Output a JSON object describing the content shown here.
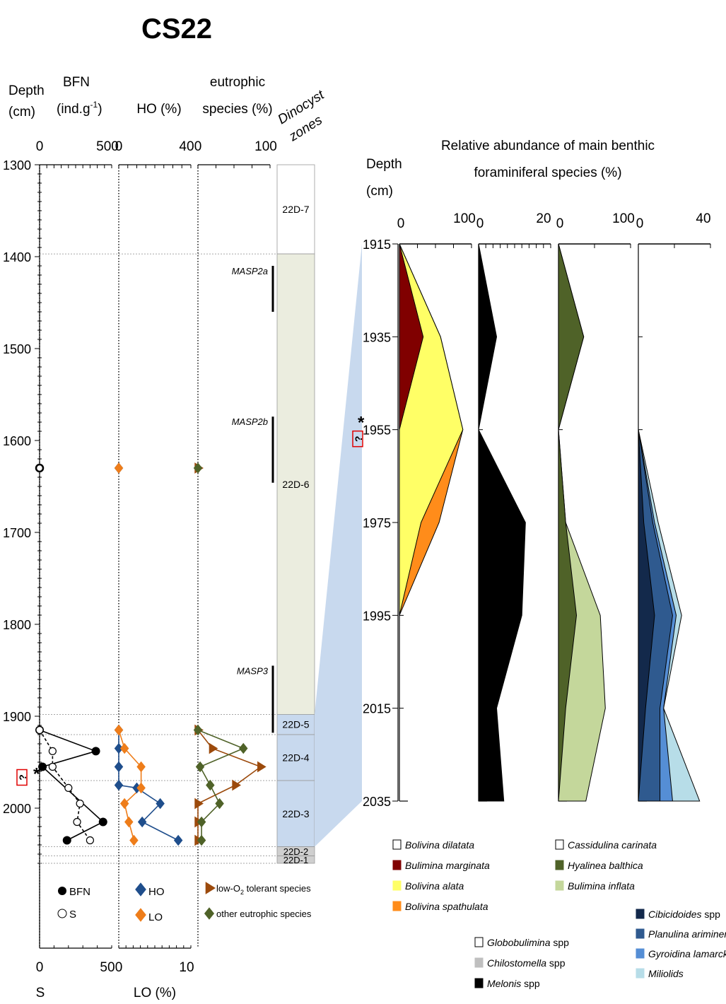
{
  "title": "CS22",
  "left": {
    "depth_label": [
      "Depth",
      "(cm)"
    ],
    "depth_ticks": [
      1300,
      1400,
      1500,
      1600,
      1700,
      1800,
      1900,
      2000
    ],
    "depth_range": [
      1300,
      2060
    ],
    "bfn": {
      "label": [
        "BFN",
        "(ind.g",
        "-1",
        ")"
      ],
      "range": [
        0,
        500
      ],
      "tick_labels": [
        "0",
        "500"
      ],
      "bottom_label": "S",
      "bottom_range": [
        0,
        50
      ],
      "bottom_tick_labels": [
        "0",
        "50"
      ]
    },
    "ho": {
      "label": "HO (%)",
      "range": [
        0,
        40
      ],
      "tick_labels": [
        "0",
        "40"
      ],
      "bottom_label": "LO (%)",
      "bottom_range": [
        0,
        10
      ],
      "bottom_tick_labels": [
        "0",
        "10"
      ]
    },
    "eutrophic": {
      "label": [
        "eutrophic",
        "species (%)"
      ],
      "range": [
        0,
        100
      ],
      "tick_labels": [
        "0",
        "100"
      ]
    },
    "zone_header": [
      "Dinocyst",
      "zones"
    ],
    "zones": [
      {
        "name": "22D-7",
        "top": 1300,
        "bottom": 1397,
        "color": "#ffffff"
      },
      {
        "name": "22D-6",
        "top": 1397,
        "bottom": 1898,
        "color": "#ebeddf"
      },
      {
        "name": "22D-5",
        "top": 1898,
        "bottom": 1920,
        "color": "#c8d9ee"
      },
      {
        "name": "22D-4",
        "top": 1920,
        "bottom": 1970,
        "color": "#c8d9ee"
      },
      {
        "name": "22D-3",
        "top": 1970,
        "bottom": 2042,
        "color": "#c8d9ee"
      },
      {
        "name": "22D-2",
        "top": 2042,
        "bottom": 2052,
        "color": "#cfcfcf"
      },
      {
        "name": "22D-1",
        "top": 2052,
        "bottom": 2060,
        "color": "#cfcfcf"
      }
    ],
    "masp": [
      {
        "name": "MASP2a",
        "top": 1410,
        "bottom": 1460
      },
      {
        "name": "MASP2b",
        "top": 1574,
        "bottom": 1646
      },
      {
        "name": "MASP3",
        "top": 1845,
        "bottom": 1918
      }
    ],
    "marker_symbol": "*",
    "marker_box": "?",
    "legends": {
      "bfn": [
        "BFN",
        "S"
      ],
      "ho": [
        "HO",
        "LO"
      ],
      "eut": [
        "low-O",
        "2",
        " tolerant species",
        "other eutrophic species"
      ]
    }
  },
  "chart_data": [
    {
      "type": "line",
      "title": "BFN (ind.g-1) and S",
      "series": [
        {
          "name": "BFN",
          "x": [
            0,
            0,
            390,
            20,
            440,
            190
          ],
          "y": [
            1630,
            1915,
            1938,
            1955,
            2015,
            2035
          ]
        },
        {
          "name": "S",
          "x": [
            0,
            0,
            9,
            9,
            20,
            28,
            26,
            35
          ],
          "y": [
            1630,
            1915,
            1938,
            1955,
            1978,
            1995,
            2015,
            2035
          ]
        }
      ],
      "xlim": [
        0,
        500
      ],
      "x2lim": [
        0,
        50
      ]
    },
    {
      "type": "line",
      "title": "HO (%) and LO (%)",
      "series": [
        {
          "name": "HO",
          "x": [
            0,
            0,
            0,
            0,
            0,
            10,
            23,
            13,
            33
          ],
          "y": [
            1630,
            1915,
            1935,
            1955,
            1975,
            1978,
            1995,
            2015,
            2035
          ]
        },
        {
          "name": "LO",
          "x": [
            0,
            0,
            0.8,
            3.1,
            3.1,
            0.8,
            1.4,
            2.1
          ],
          "y": [
            1630,
            1915,
            1935,
            1955,
            1978,
            1995,
            2015,
            2035
          ]
        }
      ],
      "xlim": [
        0,
        40
      ],
      "x2lim": [
        0,
        10
      ]
    },
    {
      "type": "line",
      "title": "eutrophic species (%)",
      "series": [
        {
          "name": "low-O2 tolerant species",
          "x": [
            0,
            0,
            20,
            87,
            52,
            0,
            0,
            0
          ],
          "y": [
            1630,
            1915,
            1935,
            1955,
            1975,
            1995,
            2015,
            2035
          ]
        },
        {
          "name": "other eutrophic species",
          "x": [
            0,
            0,
            63,
            3,
            17,
            30,
            5,
            5
          ],
          "y": [
            1630,
            1915,
            1935,
            1955,
            1975,
            1995,
            2015,
            2035
          ]
        }
      ],
      "xlim": [
        0,
        100
      ]
    },
    {
      "type": "area",
      "title": "Relative abundance of main benthic foraminiferal species (%)",
      "ylabel": "Depth (cm)",
      "depth": [
        1915,
        1935,
        1955,
        1975,
        1995,
        2015,
        2035
      ],
      "ylim": [
        1915,
        2035
      ],
      "panels": [
        {
          "xlim": [
            0,
            100
          ],
          "series": [
            {
              "name": "Bolivina dilatata",
              "color": "#ffffff",
              "values": [
                0,
                0,
                0,
                0,
                0,
                0,
                0
              ]
            },
            {
              "name": "Bulimina marginata",
              "color": "#800000",
              "values": [
                0,
                33,
                0,
                0,
                0,
                0,
                0
              ]
            },
            {
              "name": "Bolivina alata",
              "color": "#ffff66",
              "values": [
                0,
                24,
                88,
                30,
                0,
                0,
                0
              ]
            },
            {
              "name": "Bolivina spathulata",
              "color": "#ff8c1a",
              "values": [
                0,
                0,
                0,
                25,
                0,
                0,
                0
              ]
            }
          ]
        },
        {
          "xlim": [
            0,
            20
          ],
          "series": [
            {
              "name": "Globobulimina spp",
              "color": "#ffffff",
              "values": [
                0,
                0,
                0,
                0,
                0,
                0,
                0
              ]
            },
            {
              "name": "Chilostomella spp",
              "color": "#bfbfbf",
              "values": [
                0,
                0,
                0,
                0,
                0,
                0,
                0
              ]
            },
            {
              "name": "Melonis spp",
              "color": "#000000",
              "values": [
                0,
                5,
                0,
                13,
                12,
                5,
                7
              ]
            }
          ]
        },
        {
          "xlim": [
            0,
            100
          ],
          "series": [
            {
              "name": "Cassidulina carinata",
              "color": "#ffffff",
              "values": [
                0,
                0,
                0,
                0,
                0,
                0,
                0
              ]
            },
            {
              "name": "Hyalinea balthica",
              "color": "#4f6228",
              "values": [
                0,
                35,
                0,
                10,
                25,
                10,
                0
              ]
            },
            {
              "name": "Bulimina inflata",
              "color": "#c4d79b",
              "values": [
                0,
                0,
                0,
                0,
                33,
                55,
                38
              ]
            }
          ]
        },
        {
          "xlim": [
            0,
            40
          ],
          "series": [
            {
              "name": "Cibicidoides spp",
              "color": "#13294b",
              "values": [
                0,
                0,
                0,
                3,
                9,
                4,
                0
              ]
            },
            {
              "name": "Planulina ariminensis",
              "color": "#2f5a8f",
              "values": [
                0,
                0,
                0,
                5,
                10,
                8,
                12
              ]
            },
            {
              "name": "Gyroidina lamarckiana",
              "color": "#558ed5",
              "values": [
                0,
                0,
                0,
                1,
                2,
                2,
                7
              ]
            },
            {
              "name": "Miliolids",
              "color": "#b7dde8",
              "values": [
                0,
                0,
                0,
                2,
                3,
                0,
                15
              ]
            }
          ]
        }
      ]
    }
  ],
  "right": {
    "title": [
      "Relative abundance of main benthic",
      "foraminiferal species (%)"
    ],
    "depth_label": [
      "Depth",
      "(cm)"
    ],
    "depth_ticks": [
      1915,
      1935,
      1955,
      1975,
      1995,
      2015,
      2035
    ],
    "panel_tick_labels": [
      [
        "0",
        "100"
      ],
      [
        "0",
        "20"
      ],
      [
        "0",
        "100"
      ],
      [
        "0",
        "40"
      ]
    ],
    "legend_groups": [
      [
        "Bolivina dilatata",
        "Bulimina marginata",
        "Bolivina alata",
        "Bolivina spathulata"
      ],
      [
        "Cassidulina carinata",
        "Hyalinea balthica",
        "Bulimina inflata"
      ],
      [
        "Globobulimina spp",
        "Chilostomella spp",
        "Melonis spp"
      ],
      [
        "Cibicidoides spp",
        "Planulina ariminensis",
        "Gyroidina lamarckiana",
        "Miliolids"
      ]
    ]
  }
}
